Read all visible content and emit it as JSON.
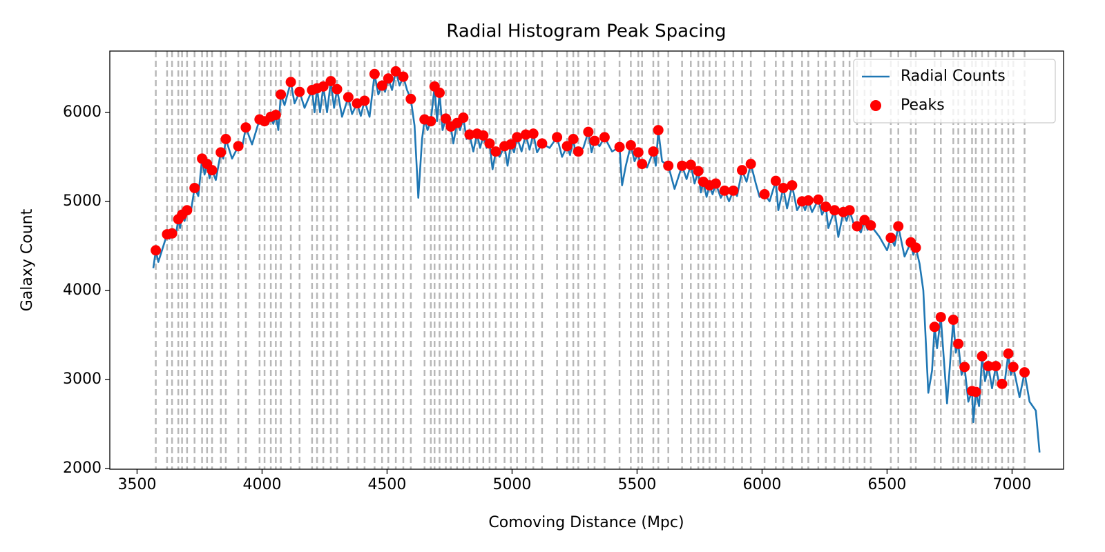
{
  "chart_data": {
    "type": "line",
    "title": "Radial Histogram Peak Spacing",
    "x_label": "Comoving Distance (Mpc)",
    "y_label": "Galaxy Count",
    "xlim": [
      3391,
      7206
    ],
    "ylim": [
      1992,
      6688
    ],
    "xticks": [
      3500,
      4000,
      4500,
      5000,
      5500,
      6000,
      6500,
      7000
    ],
    "yticks": [
      2000,
      3000,
      4000,
      5000,
      6000
    ],
    "legend": "upper right",
    "peak_lines_color": "#b8b8b8",
    "series": [
      {
        "name": "Radial Counts",
        "type": "line",
        "color": "#1f77b4",
        "x": [
          3565,
          3575,
          3585,
          3620,
          3630,
          3640,
          3655,
          3665,
          3672,
          3680,
          3690,
          3700,
          3715,
          3730,
          3745,
          3760,
          3770,
          3780,
          3790,
          3800,
          3815,
          3835,
          3845,
          3855,
          3880,
          3905,
          3920,
          3935,
          3960,
          3990,
          4000,
          4010,
          4025,
          4035,
          4045,
          4055,
          4065,
          4075,
          4090,
          4115,
          4130,
          4150,
          4170,
          4200,
          4210,
          4220,
          4232,
          4245,
          4260,
          4275,
          4288,
          4300,
          4320,
          4345,
          4360,
          4380,
          4395,
          4410,
          4430,
          4450,
          4465,
          4480,
          4492,
          4505,
          4520,
          4535,
          4550,
          4565,
          4580,
          4595,
          4610,
          4625,
          4640,
          4650,
          4662,
          4675,
          4690,
          4700,
          4710,
          4722,
          4735,
          4745,
          4755,
          4765,
          4780,
          4792,
          4805,
          4818,
          4830,
          4845,
          4860,
          4872,
          4885,
          4898,
          4910,
          4922,
          4935,
          4950,
          4970,
          4982,
          4995,
          5008,
          5020,
          5038,
          5055,
          5070,
          5085,
          5100,
          5120,
          5150,
          5180,
          5200,
          5220,
          5232,
          5245,
          5255,
          5265,
          5285,
          5305,
          5318,
          5330,
          5350,
          5370,
          5400,
          5430,
          5440,
          5455,
          5475,
          5490,
          5505,
          5512,
          5520,
          5540,
          5565,
          5575,
          5585,
          5600,
          5625,
          5650,
          5680,
          5698,
          5715,
          5730,
          5745,
          5755,
          5765,
          5778,
          5790,
          5802,
          5815,
          5835,
          5850,
          5868,
          5885,
          5900,
          5920,
          5938,
          5955,
          5975,
          5990,
          6010,
          6030,
          6055,
          6065,
          6085,
          6100,
          6120,
          6140,
          6160,
          6172,
          6185,
          6200,
          6225,
          6240,
          6255,
          6265,
          6290,
          6305,
          6325,
          6338,
          6350,
          6365,
          6380,
          6395,
          6410,
          6422,
          6435,
          6470,
          6500,
          6515,
          6530,
          6545,
          6570,
          6595,
          6605,
          6615,
          6630,
          6645,
          6665,
          6680,
          6690,
          6700,
          6715,
          6740,
          6765,
          6775,
          6785,
          6798,
          6810,
          6825,
          6840,
          6845,
          6855,
          6868,
          6880,
          6892,
          6905,
          6920,
          6935,
          6950,
          6960,
          6972,
          6985,
          6995,
          7005,
          7030,
          7050,
          7070,
          7095,
          7110
        ],
        "values": [
          4250,
          4450,
          4320,
          4630,
          4580,
          4640,
          4620,
          4800,
          4700,
          4850,
          4780,
          4900,
          4880,
          5150,
          5060,
          5480,
          5300,
          5420,
          5260,
          5350,
          5240,
          5550,
          5480,
          5700,
          5480,
          5620,
          5600,
          5830,
          5640,
          5920,
          5860,
          5900,
          5870,
          5950,
          5870,
          5970,
          5800,
          6200,
          6080,
          6340,
          6100,
          6230,
          6050,
          6250,
          6000,
          6270,
          6000,
          6290,
          6000,
          6350,
          6050,
          6260,
          5950,
          6170,
          5980,
          6100,
          5960,
          6130,
          5950,
          6430,
          6200,
          6300,
          6230,
          6380,
          6250,
          6460,
          6300,
          6400,
          6250,
          6150,
          5850,
          5040,
          5700,
          5920,
          5800,
          5900,
          6290,
          5900,
          6220,
          5800,
          5930,
          5800,
          5840,
          5650,
          5880,
          5800,
          5940,
          5700,
          5750,
          5560,
          5760,
          5600,
          5740,
          5600,
          5650,
          5360,
          5560,
          5500,
          5620,
          5400,
          5640,
          5550,
          5720,
          5560,
          5750,
          5580,
          5760,
          5550,
          5650,
          5600,
          5720,
          5500,
          5620,
          5520,
          5700,
          5520,
          5560,
          5600,
          5780,
          5550,
          5680,
          5620,
          5720,
          5560,
          5610,
          5180,
          5400,
          5630,
          5450,
          5550,
          5400,
          5420,
          5380,
          5560,
          5400,
          5800,
          5450,
          5400,
          5140,
          5400,
          5250,
          5410,
          5200,
          5340,
          5100,
          5220,
          5050,
          5180,
          5080,
          5200,
          5040,
          5120,
          5000,
          5120,
          5060,
          5350,
          5220,
          5420,
          5200,
          5050,
          5080,
          5000,
          5230,
          4900,
          5150,
          4920,
          5180,
          4900,
          5000,
          4900,
          5010,
          4880,
          5020,
          4850,
          4940,
          4700,
          4900,
          4600,
          4880,
          4780,
          4900,
          4760,
          4720,
          4650,
          4790,
          4680,
          4730,
          4600,
          4450,
          4590,
          4500,
          4720,
          4380,
          4540,
          4400,
          4480,
          4300,
          4000,
          2850,
          3100,
          3590,
          3350,
          3700,
          2730,
          3670,
          3300,
          3400,
          3050,
          3140,
          2750,
          2870,
          2520,
          2860,
          2700,
          3260,
          2980,
          3150,
          2900,
          3150,
          2920,
          2950,
          3000,
          3290,
          3050,
          3140,
          2800,
          3080,
          2750,
          2650,
          2180
        ]
      },
      {
        "name": "Peaks",
        "type": "scatter",
        "color": "#ff0000",
        "x": [
          3575,
          3620,
          3640,
          3665,
          3680,
          3700,
          3730,
          3760,
          3780,
          3800,
          3835,
          3855,
          3905,
          3935,
          3990,
          4010,
          4035,
          4055,
          4075,
          4115,
          4150,
          4200,
          4220,
          4245,
          4275,
          4300,
          4345,
          4380,
          4410,
          4450,
          4480,
          4505,
          4535,
          4565,
          4595,
          4650,
          4675,
          4690,
          4710,
          4735,
          4755,
          4780,
          4805,
          4830,
          4860,
          4885,
          4910,
          4935,
          4970,
          4995,
          5020,
          5055,
          5085,
          5120,
          5180,
          5220,
          5245,
          5265,
          5305,
          5330,
          5370,
          5430,
          5475,
          5505,
          5520,
          5565,
          5585,
          5625,
          5680,
          5715,
          5745,
          5765,
          5790,
          5815,
          5850,
          5885,
          5920,
          5955,
          6010,
          6055,
          6085,
          6120,
          6160,
          6185,
          6225,
          6255,
          6290,
          6325,
          6350,
          6380,
          6410,
          6435,
          6515,
          6545,
          6595,
          6615,
          6690,
          6715,
          6765,
          6785,
          6810,
          6840,
          6855,
          6880,
          6905,
          6935,
          6960,
          6985,
          7005,
          7050
        ],
        "values": [
          4450,
          4630,
          4640,
          4800,
          4850,
          4900,
          5150,
          5480,
          5420,
          5350,
          5550,
          5700,
          5620,
          5830,
          5920,
          5900,
          5950,
          5970,
          6200,
          6340,
          6230,
          6250,
          6270,
          6290,
          6350,
          6260,
          6170,
          6100,
          6130,
          6430,
          6300,
          6380,
          6460,
          6400,
          6150,
          5920,
          5900,
          6290,
          6220,
          5930,
          5840,
          5880,
          5940,
          5750,
          5760,
          5740,
          5650,
          5560,
          5620,
          5640,
          5720,
          5750,
          5760,
          5650,
          5720,
          5620,
          5700,
          5560,
          5780,
          5680,
          5720,
          5610,
          5630,
          5550,
          5420,
          5560,
          5800,
          5400,
          5400,
          5410,
          5340,
          5220,
          5180,
          5200,
          5120,
          5120,
          5350,
          5420,
          5080,
          5230,
          5150,
          5180,
          5000,
          5010,
          5020,
          4940,
          4900,
          4880,
          4900,
          4720,
          4790,
          4730,
          4590,
          4720,
          4540,
          4480,
          3590,
          3700,
          3670,
          3400,
          3140,
          2870,
          2860,
          3260,
          3150,
          3150,
          2950,
          3290,
          3140,
          3080
        ]
      }
    ]
  }
}
